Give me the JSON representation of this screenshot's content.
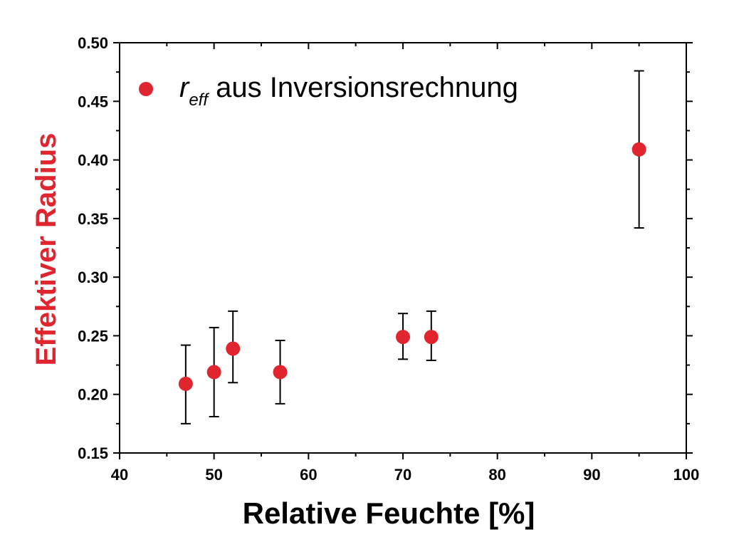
{
  "chart_data": {
    "type": "scatter",
    "xlabel": "Relative Feuchte [%]",
    "ylabel": "Effektiver Radius",
    "xlim": [
      40,
      100
    ],
    "ylim": [
      0.15,
      0.5
    ],
    "x_ticks": [
      40,
      50,
      60,
      70,
      80,
      90,
      100
    ],
    "x_tick_labels": [
      "40",
      "50",
      "60",
      "70",
      "80",
      "90",
      "100"
    ],
    "y_ticks": [
      0.15,
      0.2,
      0.25,
      0.3,
      0.35,
      0.4,
      0.45,
      0.5
    ],
    "y_tick_labels": [
      "0.15",
      "0.20",
      "0.25",
      "0.30",
      "0.35",
      "0.40",
      "0.45",
      "0.50"
    ],
    "grid": false,
    "legend_position": "top-left",
    "series": [
      {
        "legend_r": "r",
        "legend_sub": "eff",
        "legend_rest": " aus Inversionsrechnung",
        "color": "#e0252f",
        "points": [
          {
            "x": 47,
            "y": 0.209,
            "err_low": 0.175,
            "err_high": 0.242
          },
          {
            "x": 50,
            "y": 0.219,
            "err_low": 0.181,
            "err_high": 0.257
          },
          {
            "x": 52,
            "y": 0.239,
            "err_low": 0.21,
            "err_high": 0.271
          },
          {
            "x": 57,
            "y": 0.219,
            "err_low": 0.192,
            "err_high": 0.246
          },
          {
            "x": 70,
            "y": 0.249,
            "err_low": 0.23,
            "err_high": 0.269
          },
          {
            "x": 73,
            "y": 0.249,
            "err_low": 0.229,
            "err_high": 0.271
          },
          {
            "x": 95,
            "y": 0.409,
            "err_low": 0.342,
            "err_high": 0.476
          }
        ]
      }
    ]
  },
  "colors": {
    "axis": "#000000",
    "ylabel": "#e0252f",
    "marker": "#e0252f"
  }
}
